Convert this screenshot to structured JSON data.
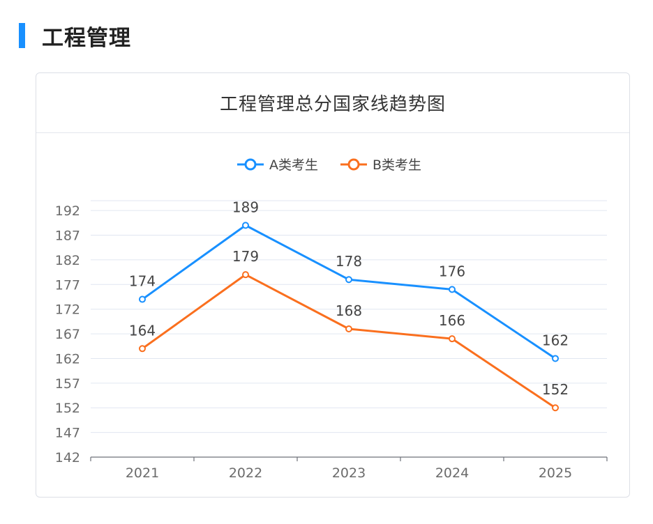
{
  "page": {
    "section_title": "工程管理"
  },
  "colors": {
    "accent": "#1890ff",
    "series_a": "#1890ff",
    "series_b": "#fa6f1e"
  },
  "chart_data": {
    "type": "line",
    "title": "工程管理总分国家线趋势图",
    "categories": [
      "2021",
      "2022",
      "2023",
      "2024",
      "2025"
    ],
    "series": [
      {
        "name": "A类考生",
        "values": [
          174,
          189,
          178,
          176,
          162
        ]
      },
      {
        "name": "B类考生",
        "values": [
          164,
          179,
          168,
          166,
          152
        ]
      }
    ],
    "y_ticks": [
      142,
      147,
      152,
      157,
      162,
      167,
      172,
      177,
      182,
      187,
      192
    ],
    "ylim": [
      142,
      194
    ],
    "grid": true,
    "legend": "top-center",
    "data_labels": true
  }
}
